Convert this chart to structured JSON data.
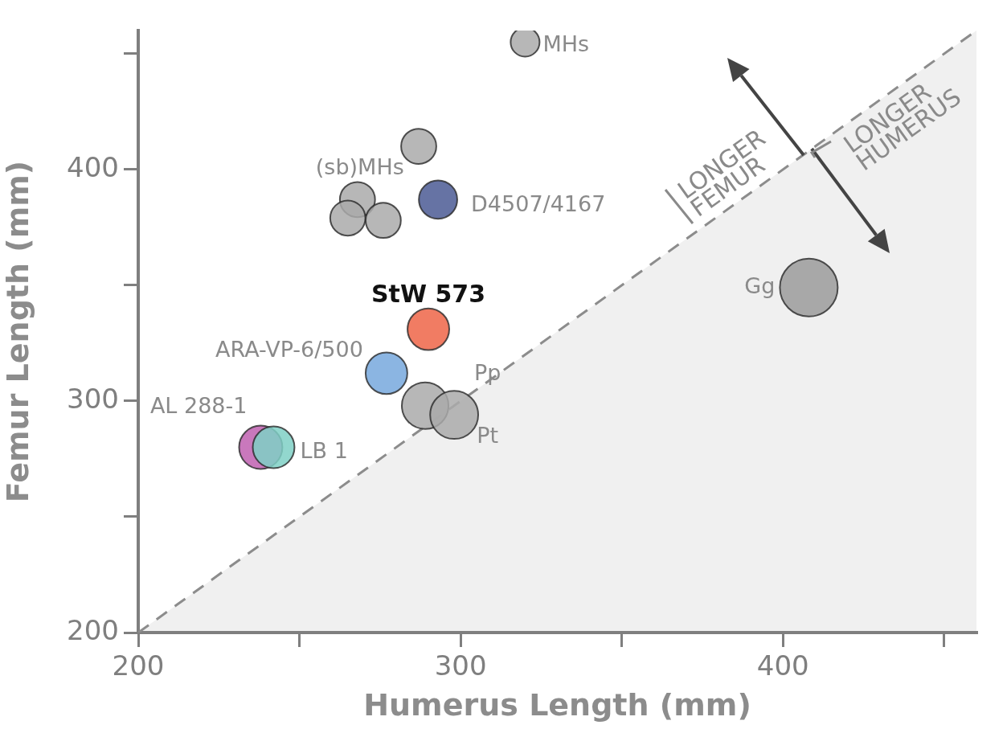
{
  "chart_data": {
    "type": "bubble",
    "xlabel": "Humerus Length (mm)",
    "ylabel": "Femur Length (mm)",
    "xlim": [
      200,
      460
    ],
    "ylim": [
      200,
      460
    ],
    "xticks": [
      200,
      {
        "value": 250,
        "label": null
      },
      300,
      {
        "value": 350,
        "label": null
      },
      400,
      {
        "value": 450,
        "label": null
      }
    ],
    "yticks": [
      200,
      {
        "value": 250,
        "label": null
      },
      300,
      {
        "value": 350,
        "label": null
      },
      400,
      {
        "value": 450,
        "label": null
      }
    ],
    "grid": false,
    "legend": false,
    "line_style": "dashed",
    "series": [
      {
        "type": "area",
        "x": [
          200,
          460
        ],
        "values": [
          200,
          460
        ],
        "color": "#8c8c8c"
      },
      {
        "type": "bubble",
        "x": [
          320,
          287,
          268,
          265,
          276,
          293,
          290,
          277,
          289,
          298,
          238,
          242,
          408
        ],
        "values": [
          455,
          410,
          387,
          379,
          378,
          387,
          331,
          312,
          298,
          294,
          280,
          280,
          349
        ],
        "sizes": [
          0.25,
          0.37,
          0.37,
          0.37,
          0.37,
          0.44,
          0.52,
          0.52,
          0.65,
          0.69,
          0.56,
          0.52,
          1
        ],
        "colors": [
          "#aaaaaa",
          "#aaaaaa",
          "#aaaaaa",
          "#aaaaaa",
          "#aaaaaa",
          "#4b5a94",
          "#ef6548",
          "#77a8dd",
          "#aaaaaa",
          "#aaaaaa",
          "#c060b0",
          "#7fd0c6",
          "#9b9b9b"
        ]
      }
    ],
    "annotations": [
      {
        "text": "MHs",
        "x": 320,
        "y": 455
      },
      {
        "text": "(sb)MHs",
        "x": 268,
        "y": 387
      },
      {
        "text": "D4507/4167",
        "x": 293,
        "y": 387
      },
      {
        "text": "StW 573",
        "x": 290,
        "y": 331
      },
      {
        "text": "ARA-VP-6/500",
        "x": 277,
        "y": 312
      },
      {
        "text": "Pp",
        "x": 289,
        "y": 298
      },
      {
        "text": "Pt",
        "x": 298,
        "y": 294
      },
      {
        "text": "AL 288-1",
        "x": 238,
        "y": 280
      },
      {
        "text": "LB 1",
        "x": 242,
        "y": 280
      },
      {
        "text": "Gg",
        "x": 408,
        "y": 349
      },
      "LONGER FEMUR",
      "LONGER HUMERUS"
    ]
  }
}
